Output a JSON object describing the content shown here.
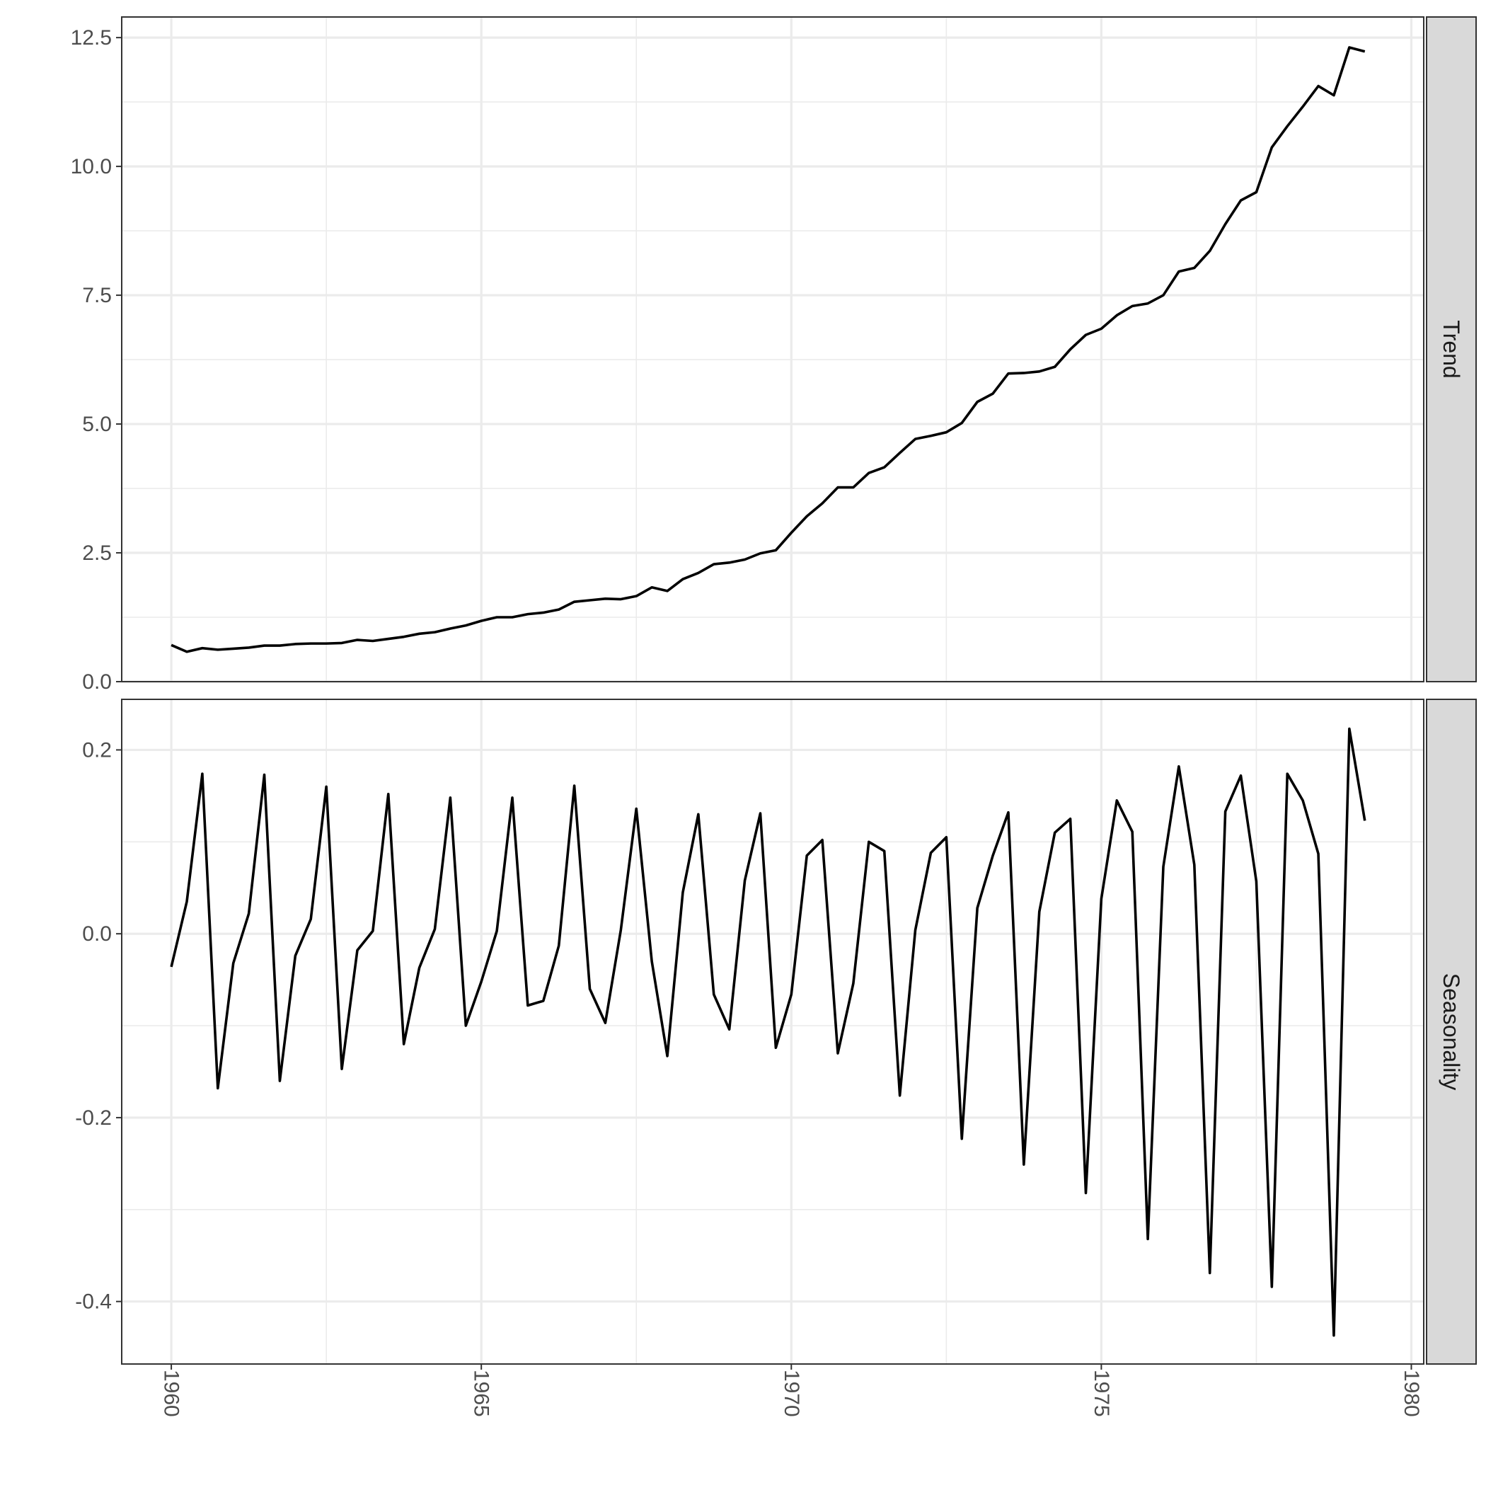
{
  "chart_data": {
    "type": "line",
    "title": "",
    "xlabel": "",
    "ylabel": "",
    "grid": true,
    "x_range": [
      1959.2,
      1980.2
    ],
    "x_ticks": [
      1960,
      1965,
      1970,
      1975,
      1980
    ],
    "x_tick_labels": [
      "1960",
      "1965",
      "1970",
      "1975",
      "1980"
    ],
    "x_start": 1960.0,
    "x_step": 0.25,
    "panels": [
      {
        "strip_label": "Trend",
        "ylim": [
          0.0,
          12.9
        ],
        "y_ticks": [
          0.0,
          2.5,
          5.0,
          7.5,
          10.0,
          12.5
        ],
        "y_tick_labels": [
          "0.0",
          "2.5",
          "5.0",
          "7.5",
          "10.0",
          "12.5"
        ],
        "values": [
          0.71,
          0.58,
          0.65,
          0.62,
          0.64,
          0.66,
          0.7,
          0.7,
          0.73,
          0.74,
          0.74,
          0.75,
          0.81,
          0.79,
          0.83,
          0.87,
          0.93,
          0.96,
          1.03,
          1.09,
          1.18,
          1.25,
          1.25,
          1.31,
          1.34,
          1.4,
          1.55,
          1.58,
          1.61,
          1.6,
          1.66,
          1.83,
          1.76,
          1.99,
          2.11,
          2.28,
          2.31,
          2.37,
          2.49,
          2.55,
          2.89,
          3.21,
          3.46,
          3.77,
          3.77,
          4.05,
          4.16,
          4.44,
          4.71,
          4.77,
          4.84,
          5.02,
          5.43,
          5.59,
          5.98,
          5.99,
          6.02,
          6.11,
          6.45,
          6.73,
          6.85,
          7.11,
          7.29,
          7.34,
          7.5,
          7.96,
          8.03,
          8.36,
          8.88,
          9.34,
          9.5,
          10.37,
          10.78,
          11.16,
          11.56,
          11.38,
          12.31,
          12.23
        ]
      },
      {
        "strip_label": "Seasonality",
        "ylim": [
          -0.468,
          0.255
        ],
        "y_ticks": [
          -0.4,
          -0.2,
          0.0,
          0.2
        ],
        "y_tick_labels": [
          "-0.4",
          "-0.2",
          "0.0",
          "0.2"
        ],
        "values": [
          -0.036,
          0.035,
          0.174,
          -0.168,
          -0.032,
          0.022,
          0.173,
          -0.16,
          -0.024,
          0.016,
          0.16,
          -0.147,
          -0.018,
          0.003,
          0.152,
          -0.12,
          -0.037,
          0.005,
          0.148,
          -0.1,
          -0.052,
          0.003,
          0.148,
          -0.078,
          -0.073,
          -0.013,
          0.161,
          -0.06,
          -0.097,
          0.004,
          0.136,
          -0.03,
          -0.133,
          0.045,
          0.13,
          -0.066,
          -0.104,
          0.058,
          0.131,
          -0.124,
          -0.066,
          0.085,
          0.102,
          -0.13,
          -0.054,
          0.1,
          0.09,
          -0.176,
          0.004,
          0.088,
          0.105,
          -0.223,
          0.028,
          0.085,
          0.132,
          -0.251,
          0.024,
          0.11,
          0.125,
          -0.282,
          0.038,
          0.145,
          0.111,
          -0.332,
          0.073,
          0.182,
          0.075,
          -0.369,
          0.133,
          0.172,
          0.057,
          -0.384,
          0.174,
          0.145,
          0.087,
          -0.437,
          0.223,
          0.123
        ]
      }
    ]
  }
}
